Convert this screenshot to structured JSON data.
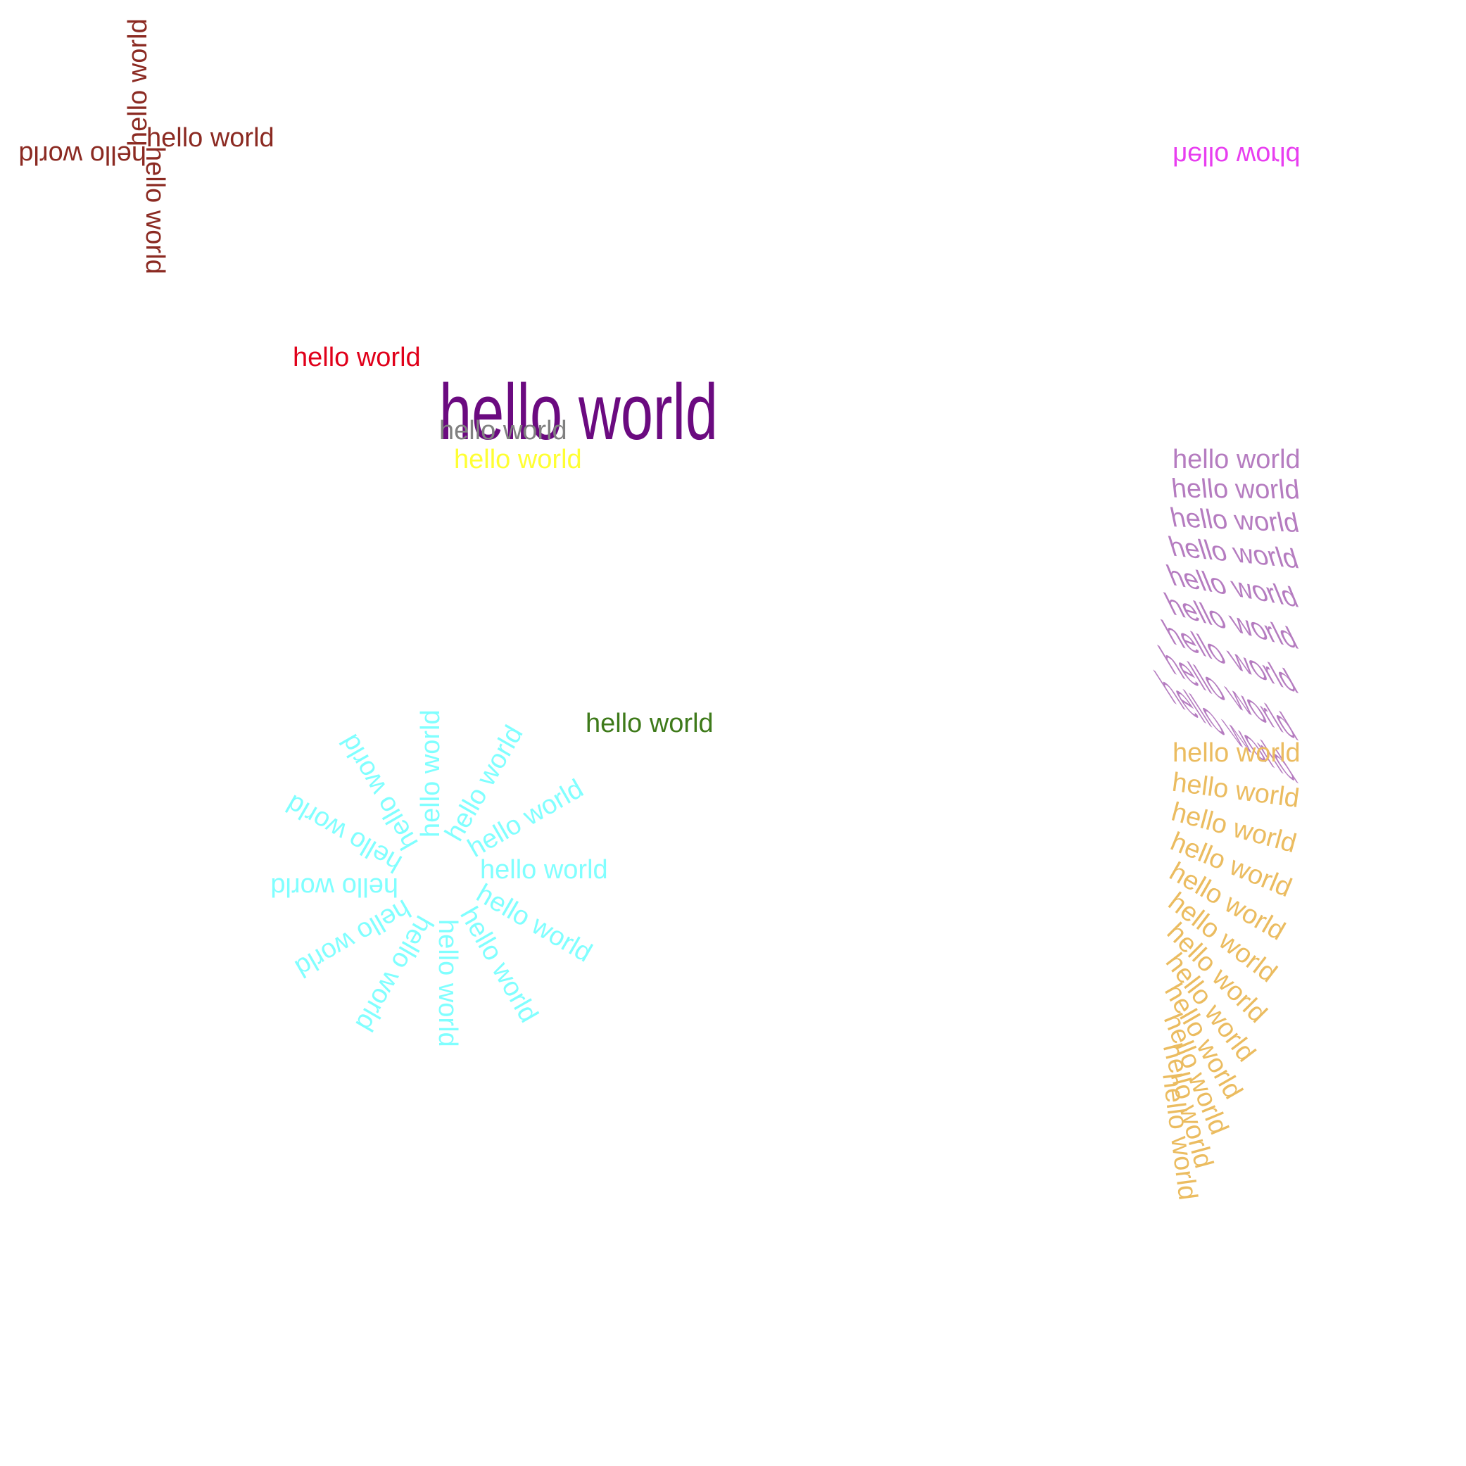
{
  "text": "hello world",
  "colors": {
    "brown": "#8b2a22",
    "magenta": "#e83ef0",
    "red": "#e0001a",
    "purple": "#6b0a80",
    "gray": "#808080",
    "yellow": "#ffff33",
    "lavender": "#b57cc0",
    "green": "#3e7a1a",
    "cyan": "#80ffff",
    "gold": "#ebbc60"
  },
  "groups": {
    "cross": {
      "color_key": "brown",
      "rotations_deg": [
        0,
        90,
        180,
        270
      ]
    },
    "mirrored": {
      "color_key": "magenta",
      "effect": "vertical-flip"
    },
    "plain_red": {
      "color_key": "red"
    },
    "large_condensed": {
      "color_key": "purple"
    },
    "gray_overlap": {
      "color_key": "gray"
    },
    "yellow": {
      "color_key": "yellow"
    },
    "skew_fan": {
      "color_key": "lavender",
      "count": 9
    },
    "plain_green": {
      "color_key": "green"
    },
    "rotation_star": {
      "color_key": "cyan",
      "count": 12,
      "step_deg": 30
    },
    "rotation_fan": {
      "color_key": "gold",
      "count": 12,
      "step_deg": 7.5
    }
  }
}
